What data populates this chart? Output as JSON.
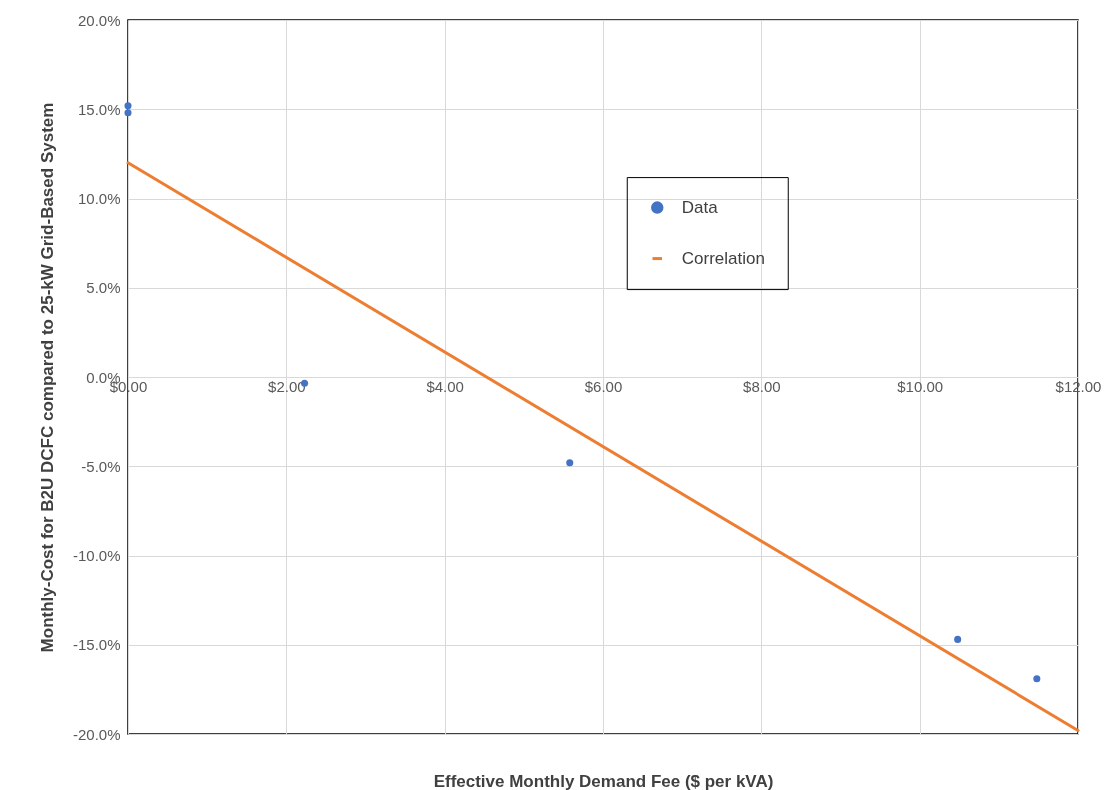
{
  "chart_data": {
    "type": "scatter",
    "xlabel": "Effective Monthly Demand Fee ($ per kVA)",
    "ylabel": "Monthly-Cost for B2U DCFC compared to 25-kW Grid-Based System",
    "series": [
      {
        "name": "Data",
        "marker": "circle",
        "color": "#4472c4",
        "x": [
          0,
          0,
          2.23,
          5.58,
          10.48,
          11.48
        ],
        "values": [
          15.2,
          14.8,
          -0.35,
          -4.8,
          -14.7,
          -16.9
        ]
      },
      {
        "name": "Correlation",
        "type": "line",
        "marker": "none",
        "color": "#ed7d31",
        "x": [
          0,
          12
        ],
        "values": [
          12.0,
          -19.8
        ]
      }
    ],
    "xlim": [
      0,
      12
    ],
    "ylim": [
      -20,
      20
    ],
    "xticks": [
      {
        "value": 0,
        "label": "$0.00"
      },
      {
        "value": 2,
        "label": "$2.00"
      },
      {
        "value": 4,
        "label": "$4.00"
      },
      {
        "value": 6,
        "label": "$6.00"
      },
      {
        "value": 8,
        "label": "$8.00"
      },
      {
        "value": 10,
        "label": "$10.00"
      },
      {
        "value": 12,
        "label": "$12.00"
      }
    ],
    "yticks": [
      {
        "value": -20,
        "label": "-20.0%"
      },
      {
        "value": -15,
        "label": "-15.0%"
      },
      {
        "value": -10,
        "label": "-10.0%"
      },
      {
        "value": -5,
        "label": "-5.0%"
      },
      {
        "value": 0,
        "label": "0.0%"
      },
      {
        "value": 5,
        "label": "5.0%"
      },
      {
        "value": 10,
        "label": "10.0%"
      },
      {
        "value": 15,
        "label": "15.0%"
      },
      {
        "value": 20,
        "label": "20.0%"
      }
    ],
    "grid": true,
    "legend": "top right"
  }
}
